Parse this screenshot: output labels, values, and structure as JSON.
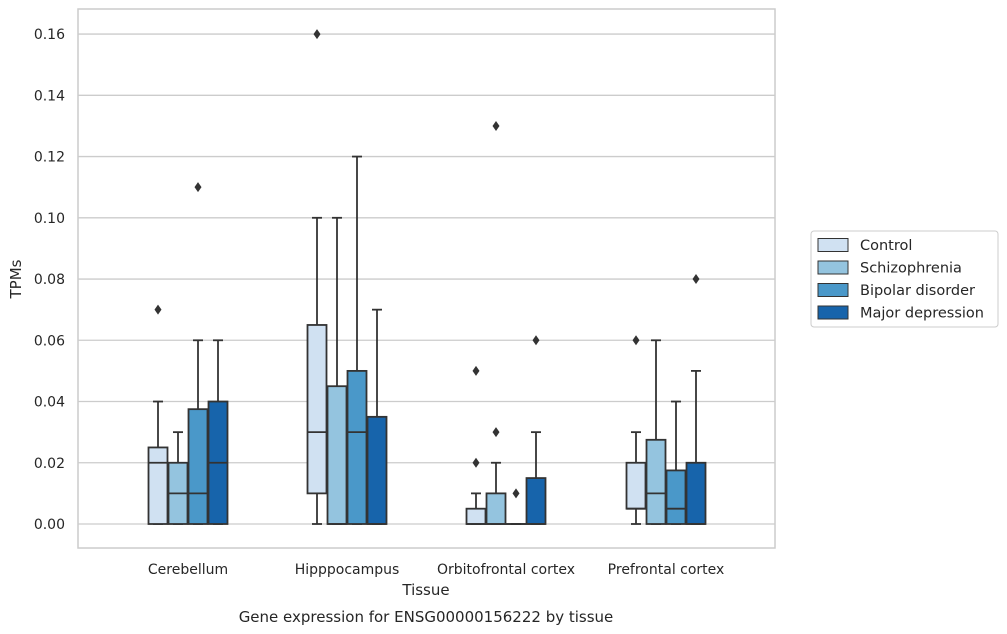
{
  "chart_data": {
    "type": "box",
    "caption": "Gene expression for ENSG00000156222 by tissue",
    "xlabel": "Tissue",
    "ylabel": "TPMs",
    "ylim": [
      -0.008,
      0.168
    ],
    "yticks": [
      0.0,
      0.02,
      0.04,
      0.06,
      0.08,
      0.1,
      0.12,
      0.14,
      0.16
    ],
    "ytick_labels": [
      "0.00",
      "0.02",
      "0.04",
      "0.06",
      "0.08",
      "0.10",
      "0.12",
      "0.14",
      "0.16"
    ],
    "grid": true,
    "legend_position": "right",
    "categories": [
      "Cerebellum",
      "Hipppocampus",
      "Orbitofrontal cortex",
      "Prefrontal cortex"
    ],
    "series": [
      {
        "name": "Control",
        "color": "#d0e1f2",
        "boxes": [
          {
            "whislo": 0.0,
            "q1": 0.0,
            "med": 0.02,
            "q3": 0.025,
            "whishi": 0.04,
            "fliers": [
              0.07
            ]
          },
          {
            "whislo": 0.0,
            "q1": 0.01,
            "med": 0.03,
            "q3": 0.065,
            "whishi": 0.1,
            "fliers": [
              0.16
            ]
          },
          {
            "whislo": 0.0,
            "q1": 0.0,
            "med": 0.0,
            "q3": 0.005,
            "whishi": 0.01,
            "fliers": [
              0.02,
              0.05
            ]
          },
          {
            "whislo": 0.0,
            "q1": 0.005,
            "med": 0.005,
            "q3": 0.02,
            "whishi": 0.03,
            "fliers": [
              0.06
            ]
          }
        ]
      },
      {
        "name": "Schizophrenia",
        "color": "#94c4df",
        "boxes": [
          {
            "whislo": 0.0,
            "q1": 0.0,
            "med": 0.01,
            "q3": 0.02,
            "whishi": 0.03,
            "fliers": []
          },
          {
            "whislo": 0.0,
            "q1": 0.0,
            "med": 0.0,
            "q3": 0.045,
            "whishi": 0.1,
            "fliers": []
          },
          {
            "whislo": 0.0,
            "q1": 0.0,
            "med": 0.0,
            "q3": 0.01,
            "whishi": 0.02,
            "fliers": [
              0.03,
              0.13
            ]
          },
          {
            "whislo": 0.0,
            "q1": 0.0,
            "med": 0.01,
            "q3": 0.0275,
            "whishi": 0.06,
            "fliers": []
          }
        ]
      },
      {
        "name": "Bipolar disorder",
        "color": "#4a98c9",
        "boxes": [
          {
            "whislo": 0.0,
            "q1": 0.0,
            "med": 0.01,
            "q3": 0.0375,
            "whishi": 0.06,
            "fliers": [
              0.11
            ]
          },
          {
            "whislo": 0.0,
            "q1": 0.0,
            "med": 0.03,
            "q3": 0.05,
            "whishi": 0.12,
            "fliers": []
          },
          {
            "whislo": 0.0,
            "q1": 0.0,
            "med": 0.0,
            "q3": 0.0,
            "whishi": 0.0,
            "fliers": [
              0.01
            ]
          },
          {
            "whislo": 0.0,
            "q1": 0.0,
            "med": 0.005,
            "q3": 0.0175,
            "whishi": 0.04,
            "fliers": []
          }
        ]
      },
      {
        "name": "Major depression",
        "color": "#1764ab",
        "boxes": [
          {
            "whislo": 0.0,
            "q1": 0.0,
            "med": 0.02,
            "q3": 0.04,
            "whishi": 0.06,
            "fliers": []
          },
          {
            "whislo": 0.0,
            "q1": 0.0,
            "med": 0.0,
            "q3": 0.035,
            "whishi": 0.07,
            "fliers": []
          },
          {
            "whislo": 0.0,
            "q1": 0.0,
            "med": 0.0,
            "q3": 0.015,
            "whishi": 0.03,
            "fliers": [
              0.06
            ]
          },
          {
            "whislo": 0.0,
            "q1": 0.0,
            "med": 0.0,
            "q3": 0.02,
            "whishi": 0.05,
            "fliers": [
              0.08
            ]
          }
        ]
      }
    ]
  }
}
